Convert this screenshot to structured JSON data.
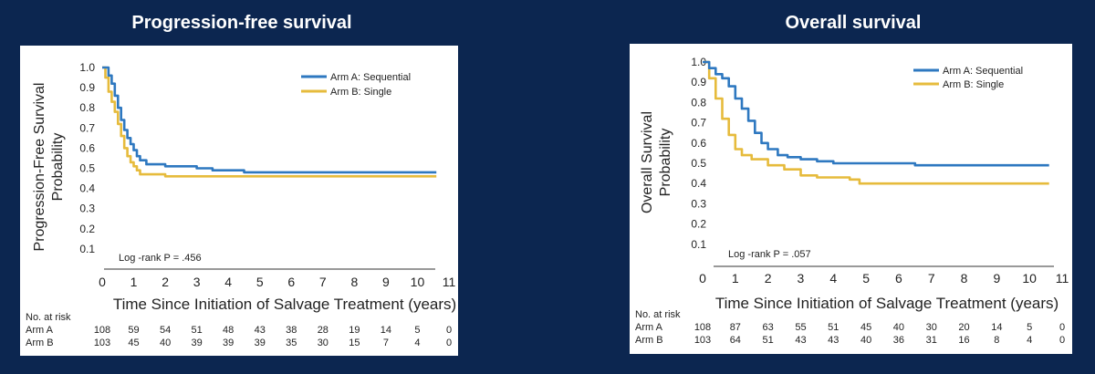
{
  "pfs": {
    "title": "Progression-free survival",
    "ylabel_line1": "Progression-Free Survival",
    "ylabel_line2": "Probability",
    "xlabel": "Time Since Initiation of Salvage Treatment (years)",
    "annotation": "Log -rank P = .456",
    "legend_a": "Arm A: Sequential",
    "legend_b": "Arm B: Single",
    "risk_header": "No. at risk",
    "risk_a_label": "Arm A",
    "risk_b_label": "Arm B"
  },
  "os": {
    "title": "Overall survival",
    "ylabel_line1": "Overall Survival",
    "ylabel_line2": "Probability",
    "xlabel": "Time Since Initiation of Salvage Treatment (years)",
    "annotation": "Log -rank P = .057",
    "legend_a": "Arm A: Sequential",
    "legend_b": "Arm B: Single",
    "risk_header": "No. at risk",
    "risk_a_label": "Arm A",
    "risk_b_label": "Arm B"
  },
  "colors": {
    "arm_a": "#2e78c0",
    "arm_b": "#e6bb3c",
    "background": "#0c2650"
  },
  "chart_data": [
    {
      "type": "line",
      "title": "Progression-free survival",
      "xlabel": "Time Since Initiation of Salvage Treatment (years)",
      "ylabel": "Progression-Free Survival Probability",
      "xlim": [
        0,
        11
      ],
      "ylim": [
        0,
        1.0
      ],
      "x_ticks": [
        "0",
        "1",
        "2",
        "3",
        "4",
        "5",
        "6",
        "7",
        "8",
        "9",
        "10",
        "11"
      ],
      "y_ticks": [
        "0.1",
        "0.2",
        "0.3",
        "0.4",
        "0.5",
        "0.6",
        "0.7",
        "0.8",
        "0.9",
        "1.0"
      ],
      "grid": false,
      "legend_position": "top-right",
      "series": [
        {
          "name": "Arm A: Sequential",
          "x": [
            0,
            0.1,
            0.2,
            0.3,
            0.4,
            0.5,
            0.6,
            0.7,
            0.8,
            0.9,
            1.0,
            1.1,
            1.2,
            1.4,
            1.6,
            2.0,
            2.5,
            3.0,
            3.5,
            4.0,
            4.5,
            5.0,
            6.0,
            7.0,
            8.0,
            9.0,
            10.0,
            10.6
          ],
          "y": [
            1.0,
            1.0,
            0.96,
            0.92,
            0.86,
            0.8,
            0.74,
            0.69,
            0.65,
            0.62,
            0.59,
            0.56,
            0.54,
            0.52,
            0.52,
            0.51,
            0.51,
            0.5,
            0.49,
            0.49,
            0.48,
            0.48,
            0.48,
            0.48,
            0.48,
            0.48,
            0.48,
            0.48
          ]
        },
        {
          "name": "Arm B: Single",
          "x": [
            0,
            0.1,
            0.2,
            0.3,
            0.4,
            0.5,
            0.6,
            0.7,
            0.8,
            0.9,
            1.0,
            1.1,
            1.2,
            1.4,
            1.6,
            2.0,
            3.0,
            4.0,
            5.0,
            6.0,
            7.0,
            8.0,
            9.0,
            10.0,
            10.6
          ],
          "y": [
            1.0,
            0.95,
            0.88,
            0.83,
            0.78,
            0.72,
            0.66,
            0.6,
            0.56,
            0.53,
            0.51,
            0.49,
            0.47,
            0.47,
            0.47,
            0.46,
            0.46,
            0.46,
            0.46,
            0.46,
            0.46,
            0.46,
            0.46,
            0.46,
            0.46
          ]
        }
      ],
      "risk_table": {
        "arm_a": [
          "108",
          "59",
          "54",
          "51",
          "48",
          "43",
          "38",
          "28",
          "19",
          "14",
          "5",
          "0"
        ],
        "arm_b": [
          "103",
          "45",
          "40",
          "39",
          "39",
          "39",
          "35",
          "30",
          "15",
          "7",
          "4",
          "0"
        ]
      }
    },
    {
      "type": "line",
      "title": "Overall survival",
      "xlabel": "Time Since Initiation of Salvage Treatment (years)",
      "ylabel": "Overall Survival Probability",
      "xlim": [
        0,
        11
      ],
      "ylim": [
        0,
        1.0
      ],
      "x_ticks": [
        "0",
        "1",
        "2",
        "3",
        "4",
        "5",
        "6",
        "7",
        "8",
        "9",
        "10",
        "11"
      ],
      "y_ticks": [
        "0.1",
        "0.2",
        "0.3",
        "0.4",
        "0.5",
        "0.6",
        "0.7",
        "0.8",
        "0.9",
        "1.0"
      ],
      "grid": false,
      "legend_position": "top-right",
      "series": [
        {
          "name": "Arm A: Sequential",
          "x": [
            0,
            0.2,
            0.4,
            0.6,
            0.8,
            1.0,
            1.2,
            1.4,
            1.6,
            1.8,
            2.0,
            2.3,
            2.6,
            3.0,
            3.5,
            4.0,
            4.5,
            5.0,
            6.0,
            6.5,
            7.0,
            8.0,
            9.0,
            10.0,
            10.6
          ],
          "y": [
            1.0,
            0.97,
            0.94,
            0.92,
            0.88,
            0.82,
            0.77,
            0.71,
            0.65,
            0.6,
            0.57,
            0.54,
            0.53,
            0.52,
            0.51,
            0.5,
            0.5,
            0.5,
            0.5,
            0.49,
            0.49,
            0.49,
            0.49,
            0.49,
            0.49
          ]
        },
        {
          "name": "Arm B: Single",
          "x": [
            0,
            0.2,
            0.4,
            0.6,
            0.8,
            1.0,
            1.2,
            1.5,
            2.0,
            2.5,
            3.0,
            3.5,
            4.0,
            4.5,
            4.8,
            5.0,
            6.0,
            7.0,
            8.0,
            9.0,
            10.0,
            10.6
          ],
          "y": [
            1.0,
            0.92,
            0.82,
            0.72,
            0.64,
            0.57,
            0.54,
            0.52,
            0.49,
            0.47,
            0.44,
            0.43,
            0.43,
            0.42,
            0.4,
            0.4,
            0.4,
            0.4,
            0.4,
            0.4,
            0.4,
            0.4
          ]
        }
      ],
      "risk_table": {
        "arm_a": [
          "108",
          "87",
          "63",
          "55",
          "51",
          "45",
          "40",
          "30",
          "20",
          "14",
          "5",
          "0"
        ],
        "arm_b": [
          "103",
          "64",
          "51",
          "43",
          "43",
          "40",
          "36",
          "31",
          "16",
          "8",
          "4",
          "0"
        ]
      }
    }
  ]
}
